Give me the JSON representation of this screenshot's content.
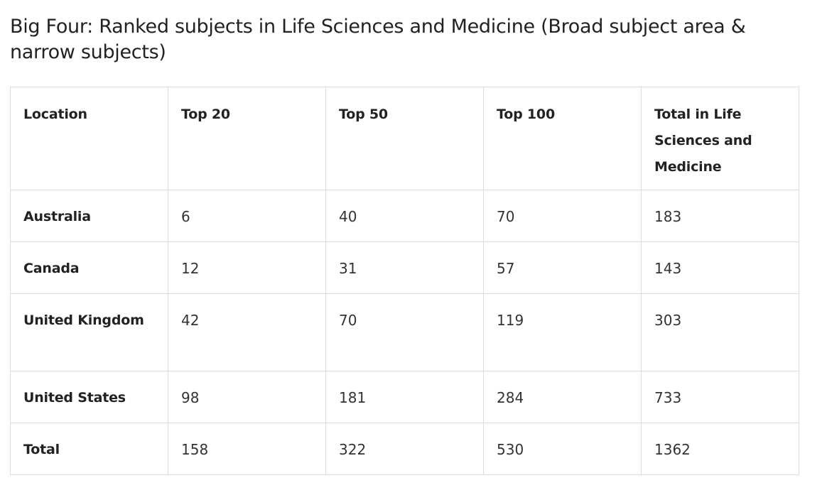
{
  "title": "Big Four: Ranked subjects in Life Sciences and Medicine (Broad subject area & narrow subjects)",
  "table": {
    "headers": [
      "Location",
      "Top 20",
      "Top 50",
      "Top 100",
      "Total in Life Sciences and Medicine"
    ],
    "rows": [
      [
        "Australia",
        "6",
        "40",
        "70",
        "183"
      ],
      [
        "Canada",
        "12",
        "31",
        "57",
        "143"
      ],
      [
        "United Kingdom",
        "42",
        "70",
        "119",
        "303"
      ],
      [
        "United States",
        "98",
        "181",
        "284",
        "733"
      ],
      [
        "Total",
        "158",
        "322",
        "530",
        "1362"
      ]
    ]
  }
}
